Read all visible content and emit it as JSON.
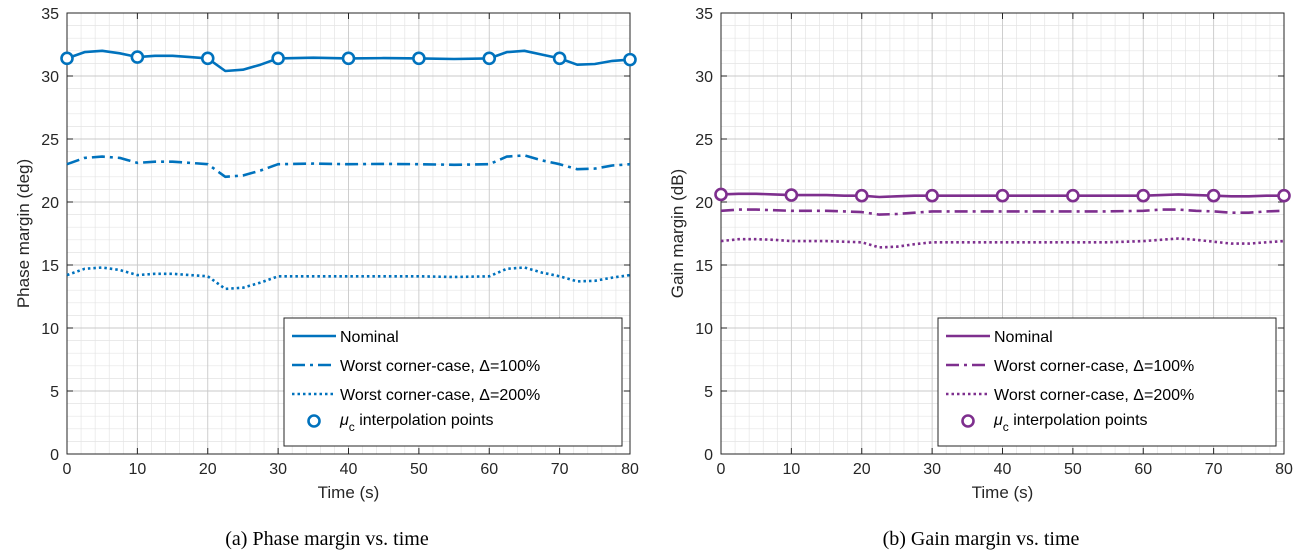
{
  "chart_data": [
    {
      "type": "line",
      "caption": "(a) Phase margin vs. time",
      "xlabel": "Time (s)",
      "ylabel": "Phase margin (deg)",
      "xlim": [
        0,
        80
      ],
      "ylim": [
        0,
        35
      ],
      "xticks": [
        "0",
        "10",
        "20",
        "30",
        "40",
        "50",
        "60",
        "70",
        "80"
      ],
      "yticks": [
        "0",
        "5",
        "10",
        "15",
        "20",
        "25",
        "30",
        "35"
      ],
      "grid": "major and minor",
      "legend_position": "bottom-right",
      "color": "#0072BD",
      "x": [
        0,
        2.5,
        5,
        7.5,
        10,
        12.5,
        15,
        17.5,
        20,
        22.5,
        25,
        27.5,
        30,
        35,
        40,
        45,
        50,
        55,
        60,
        62.5,
        65,
        67.5,
        70,
        72.5,
        75,
        77.5,
        80
      ],
      "series": [
        {
          "name": "Nominal",
          "style": "solid",
          "values": [
            31.4,
            31.9,
            32.0,
            31.8,
            31.5,
            31.6,
            31.6,
            31.5,
            31.4,
            30.4,
            30.5,
            30.9,
            31.4,
            31.45,
            31.4,
            31.42,
            31.4,
            31.35,
            31.4,
            31.9,
            32.0,
            31.7,
            31.4,
            30.9,
            30.95,
            31.2,
            31.3
          ]
        },
        {
          "name": "Worst corner-case, Δ=100%",
          "style": "dashdot",
          "values": [
            23.0,
            23.5,
            23.6,
            23.5,
            23.1,
            23.2,
            23.2,
            23.1,
            23.0,
            22.0,
            22.1,
            22.5,
            23.0,
            23.05,
            23.0,
            23.02,
            23.0,
            22.95,
            23.0,
            23.6,
            23.7,
            23.3,
            23.0,
            22.6,
            22.65,
            22.9,
            23.0
          ]
        },
        {
          "name": "Worst corner-case, Δ=200%",
          "style": "dotted",
          "values": [
            14.2,
            14.7,
            14.8,
            14.6,
            14.2,
            14.3,
            14.3,
            14.2,
            14.1,
            13.1,
            13.2,
            13.6,
            14.1,
            14.1,
            14.1,
            14.1,
            14.1,
            14.05,
            14.1,
            14.7,
            14.8,
            14.4,
            14.1,
            13.7,
            13.75,
            14.0,
            14.2
          ]
        }
      ],
      "markers": {
        "name": "interpolation points",
        "symbol": "μ",
        "subscript": "c",
        "x": [
          0,
          10,
          20,
          30,
          40,
          50,
          60,
          70,
          80
        ],
        "y": [
          31.4,
          31.5,
          31.4,
          31.4,
          31.4,
          31.4,
          31.4,
          31.4,
          31.3
        ]
      }
    },
    {
      "type": "line",
      "caption": "(b) Gain margin vs. time",
      "xlabel": "Time (s)",
      "ylabel": "Gain margin (dB)",
      "xlim": [
        0,
        80
      ],
      "ylim": [
        0,
        35
      ],
      "xticks": [
        "0",
        "10",
        "20",
        "30",
        "40",
        "50",
        "60",
        "70",
        "80"
      ],
      "yticks": [
        "0",
        "5",
        "10",
        "15",
        "20",
        "25",
        "30",
        "35"
      ],
      "grid": "major and minor",
      "legend_position": "bottom-right",
      "color": "#7E2F8E",
      "x": [
        0,
        2.5,
        5,
        7.5,
        10,
        12.5,
        15,
        17.5,
        20,
        22.5,
        25,
        27.5,
        30,
        35,
        40,
        45,
        50,
        55,
        60,
        62.5,
        65,
        67.5,
        70,
        72.5,
        75,
        77.5,
        80
      ],
      "series": [
        {
          "name": "Nominal",
          "style": "solid",
          "values": [
            20.6,
            20.65,
            20.65,
            20.6,
            20.55,
            20.55,
            20.55,
            20.5,
            20.5,
            20.4,
            20.45,
            20.5,
            20.5,
            20.5,
            20.5,
            20.5,
            20.5,
            20.5,
            20.5,
            20.55,
            20.6,
            20.55,
            20.5,
            20.45,
            20.45,
            20.5,
            20.5
          ]
        },
        {
          "name": "Worst corner-case, Δ=100%",
          "style": "dashdot",
          "values": [
            19.3,
            19.4,
            19.4,
            19.35,
            19.3,
            19.3,
            19.3,
            19.25,
            19.2,
            19.0,
            19.05,
            19.15,
            19.25,
            19.25,
            19.25,
            19.25,
            19.25,
            19.25,
            19.3,
            19.4,
            19.4,
            19.3,
            19.25,
            19.15,
            19.15,
            19.25,
            19.3
          ]
        },
        {
          "name": "Worst corner-case, Δ=200%",
          "style": "dotted",
          "values": [
            16.9,
            17.05,
            17.05,
            17.0,
            16.9,
            16.9,
            16.9,
            16.85,
            16.8,
            16.4,
            16.45,
            16.65,
            16.8,
            16.8,
            16.8,
            16.8,
            16.8,
            16.8,
            16.9,
            17.0,
            17.1,
            17.0,
            16.85,
            16.7,
            16.7,
            16.8,
            16.9
          ]
        }
      ],
      "markers": {
        "name": "interpolation points",
        "symbol": "μ",
        "subscript": "c",
        "x": [
          0,
          10,
          20,
          30,
          40,
          50,
          60,
          70,
          80
        ],
        "y": [
          20.6,
          20.55,
          20.5,
          20.5,
          20.5,
          20.5,
          20.5,
          20.5,
          20.5
        ]
      }
    }
  ]
}
